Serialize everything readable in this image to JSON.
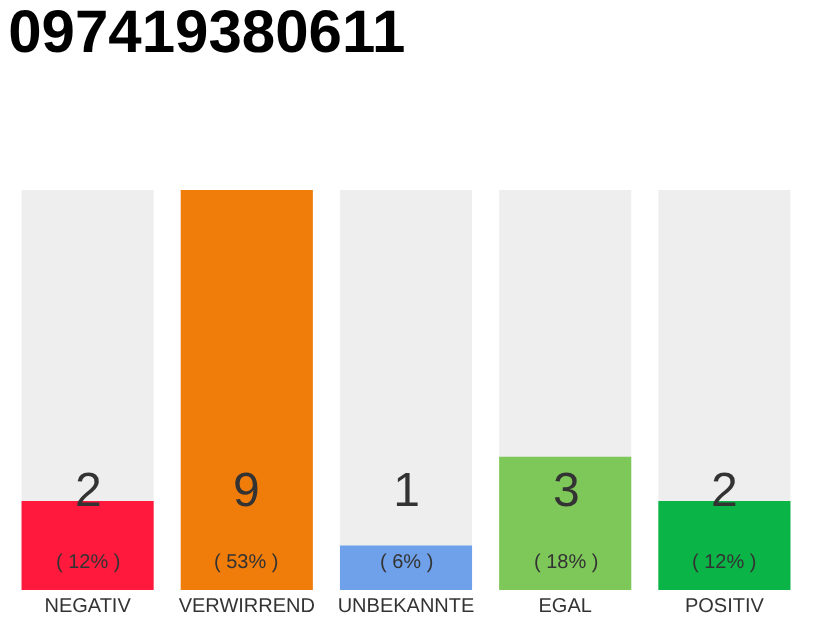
{
  "chart_data": {
    "type": "bar",
    "title": "097419380611",
    "categories": [
      "NEGATIV",
      "VERWIRREND",
      "UNBEKANNTE",
      "EGAL",
      "POSITIV"
    ],
    "values": [
      2,
      9,
      1,
      3,
      2
    ],
    "colors": [
      "#ff1a3d",
      "#f07d0a",
      "#6fa0ea",
      "#7ec85a",
      "#0bb447"
    ],
    "value_labels": [
      "2\n( 12% )",
      "9\n( 53% )",
      "1\n( 6% )",
      "3\n( 18% )",
      "2\n( 12% )"
    ],
    "grid": false,
    "legend": false
  }
}
